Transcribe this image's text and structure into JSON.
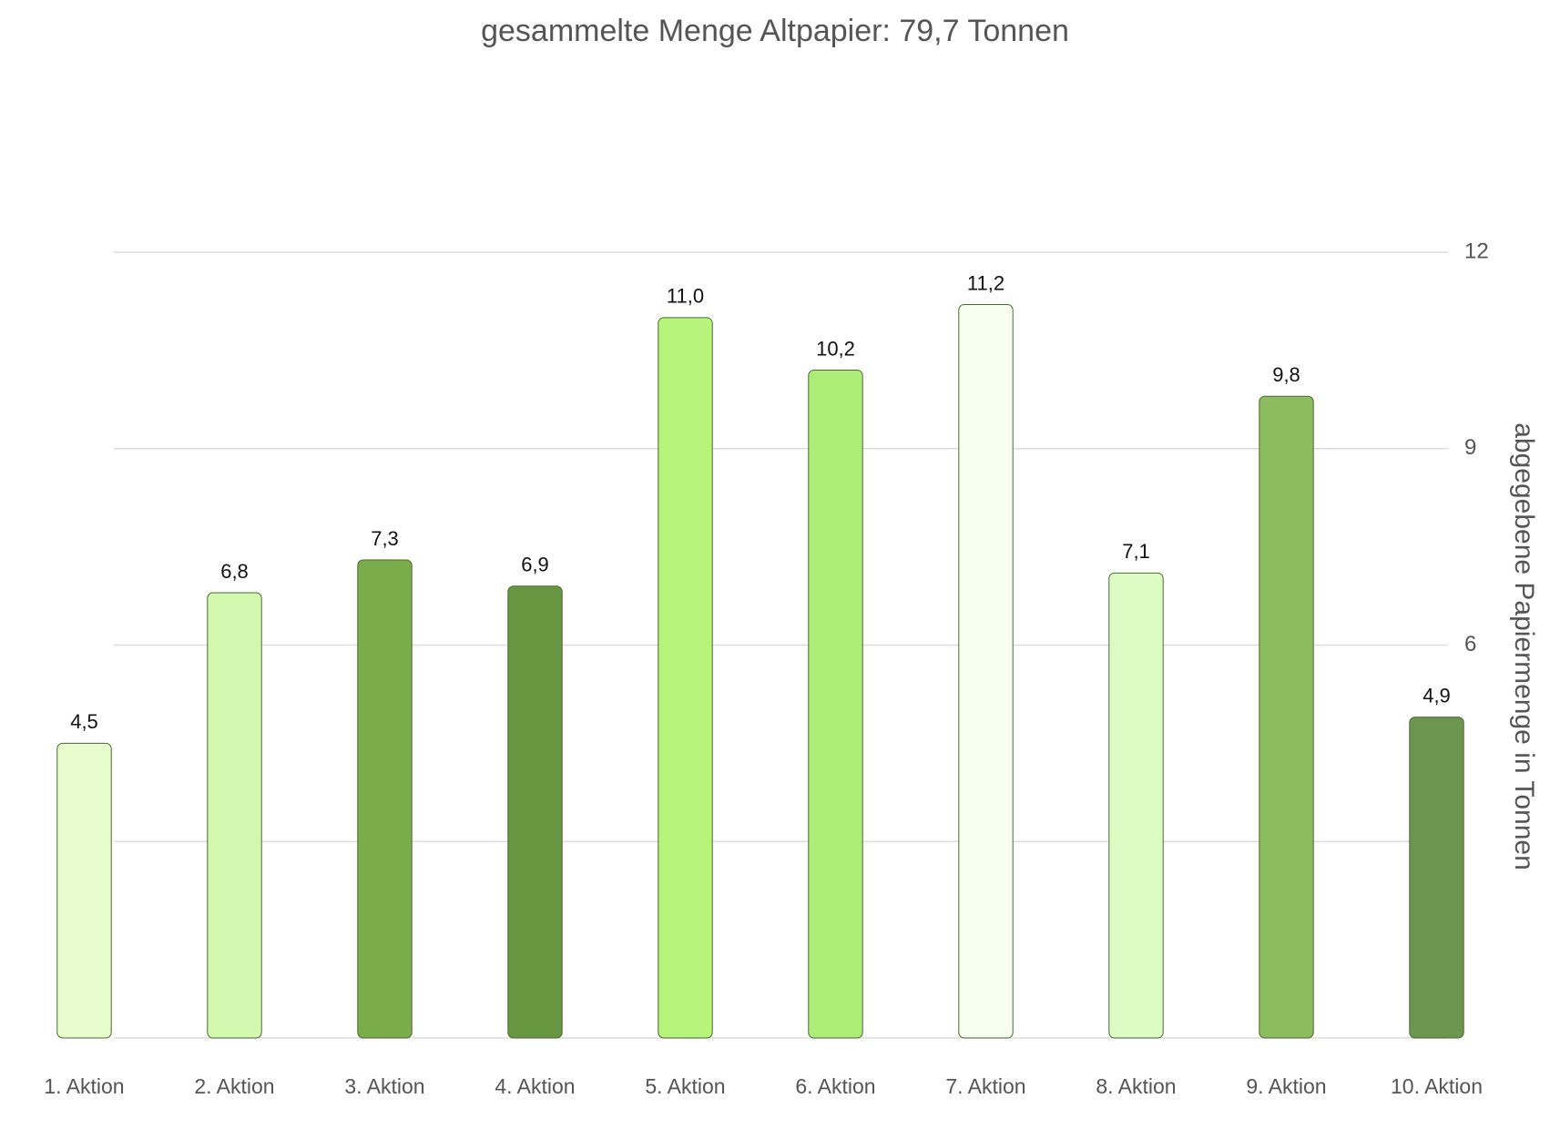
{
  "chart_data": {
    "type": "bar",
    "title": "gesammelte Menge Altpapier: 79,7 Tonnen",
    "y_axis_label": "abgegebene Papiermenge in Tonnen",
    "categories": [
      "1. Aktion",
      "2. Aktion",
      "3. Aktion",
      "4. Aktion",
      "5. Aktion",
      "6. Aktion",
      "7. Aktion",
      "8. Aktion",
      "9. Aktion",
      "10. Aktion"
    ],
    "values": [
      4.5,
      6.8,
      7.3,
      6.9,
      11.0,
      10.2,
      11.2,
      7.1,
      9.8,
      4.9
    ],
    "value_labels": [
      "4,5",
      "6,8",
      "7,3",
      "6,9",
      "11,0",
      "10,2",
      "11,2",
      "7,1",
      "9,8",
      "4,9"
    ],
    "colors": [
      "#e6fccc",
      "#d2f8b0",
      "#7aac4c",
      "#66963f",
      "#b6f47c",
      "#aeec78",
      "#f6fff0",
      "#dcfcc4",
      "#8cbc5e",
      "#6c9650"
    ],
    "ylim": [
      0,
      12
    ],
    "yticks": [
      6,
      9,
      12
    ],
    "grid": true,
    "y_axis_side": "right"
  }
}
